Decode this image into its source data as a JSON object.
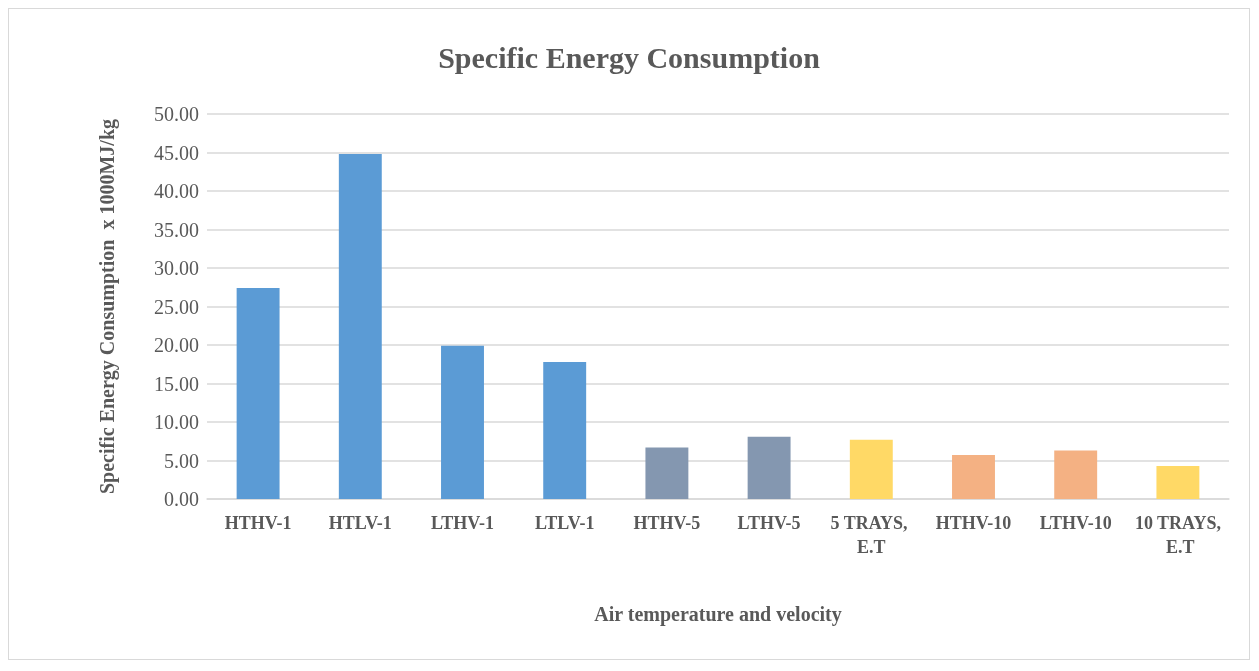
{
  "chart_data": {
    "type": "bar",
    "title": "Specific Energy Consumption",
    "xlabel": "Air temperature and velocity",
    "ylabel": "Specific Energy Consumption  x 1000MJ/kg",
    "categories": [
      "HTHV-1",
      "HTLV-1",
      "LTHV-1",
      "LTLV-1",
      "HTHV-5",
      "LTHV-5",
      "5 TRAYS, E.T",
      "HTHV-10",
      "LTHV-10",
      "10 TRAYS, E.T"
    ],
    "values": [
      27.4,
      44.8,
      19.9,
      17.8,
      6.7,
      8.1,
      7.7,
      5.7,
      6.3,
      4.3
    ],
    "colors": [
      "#5b9bd5",
      "#5b9bd5",
      "#5b9bd5",
      "#5b9bd5",
      "#8497b0",
      "#8497b0",
      "#ffd966",
      "#f4b183",
      "#f4b183",
      "#ffd966"
    ],
    "ylim": [
      0,
      50
    ],
    "yticks": [
      {
        "value": 0,
        "label": "0.00"
      },
      {
        "value": 5,
        "label": "5.00"
      },
      {
        "value": 10,
        "label": "10.00"
      },
      {
        "value": 15,
        "label": "15.00"
      },
      {
        "value": 20,
        "label": "20.00"
      },
      {
        "value": 25,
        "label": "25.00"
      },
      {
        "value": 30,
        "label": "30.00"
      },
      {
        "value": 35,
        "label": "35.00"
      },
      {
        "value": 40,
        "label": "40.00"
      },
      {
        "value": 45,
        "label": "45.00"
      },
      {
        "value": 50,
        "label": "50.00"
      }
    ],
    "grid": "y"
  }
}
